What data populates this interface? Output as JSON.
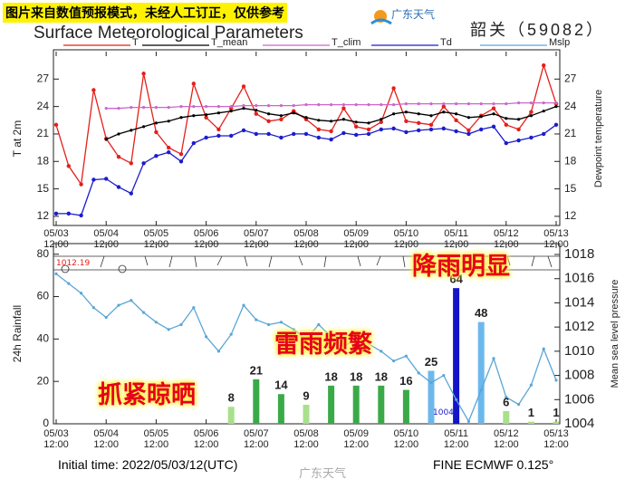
{
  "header": {
    "notice": "图片来自数值预报模式，未经人工订正，仅供参考",
    "logo": "广东天气",
    "station": "韶关（59082）"
  },
  "footer": {
    "initial_time": "Initial time: 2022/05/03/12(UTC)",
    "model": "FINE ECMWF 0.125°",
    "watermark": "广东天气"
  },
  "chart_data": [
    {
      "type": "line",
      "title": "Surface Meteorological Parameters",
      "y_label": "T at 2m",
      "y2_label": "Dewpoint temperature",
      "x": [
        "05/03 12:00",
        "05/03 18:00",
        "05/04 00:00",
        "05/04 06:00",
        "05/04 12:00",
        "05/04 18:00",
        "05/05 00:00",
        "05/05 06:00",
        "05/05 12:00",
        "05/05 18:00",
        "05/06 00:00",
        "05/06 06:00",
        "05/06 12:00",
        "05/06 18:00",
        "05/07 00:00",
        "05/07 06:00",
        "05/07 12:00",
        "05/07 18:00",
        "05/08 00:00",
        "05/08 06:00",
        "05/08 12:00",
        "05/08 18:00",
        "05/09 00:00",
        "05/09 06:00",
        "05/09 12:00",
        "05/09 18:00",
        "05/10 00:00",
        "05/10 06:00",
        "05/10 12:00",
        "05/10 18:00",
        "05/11 00:00",
        "05/11 06:00",
        "05/11 12:00",
        "05/11 18:00",
        "05/12 00:00",
        "05/12 06:00",
        "05/12 12:00",
        "05/12 18:00",
        "05/13 00:00",
        "05/13 06:00",
        "05/13 12:00"
      ],
      "series": [
        {
          "name": "T",
          "color": "#e3201b",
          "values": [
            22,
            17.5,
            15.5,
            25.8,
            20.5,
            18.5,
            17.8,
            27.6,
            21.2,
            19.5,
            18.8,
            26.5,
            22.8,
            21.5,
            23.8,
            26.2,
            23.2,
            22.4,
            22.6,
            23.5,
            22.6,
            21.5,
            21.3,
            23.8,
            21.8,
            21.5,
            22.3,
            26.0,
            22.4,
            22.2,
            22.0,
            24.0,
            22.5,
            21.4,
            23.0,
            23.8,
            22.0,
            21.5,
            23.4,
            28.5,
            24.3
          ]
        },
        {
          "name": "T_mean",
          "color": "#000000",
          "values": [
            null,
            null,
            null,
            null,
            20.4,
            21.0,
            21.4,
            21.8,
            22.2,
            22.4,
            22.8,
            23.0,
            23.1,
            23.3,
            23.5,
            23.8,
            23.6,
            23.2,
            23.0,
            23.3,
            22.8,
            22.5,
            22.4,
            22.6,
            22.3,
            22.2,
            22.6,
            23.2,
            23.4,
            23.2,
            23.0,
            23.4,
            23.2,
            22.8,
            22.9,
            23.2,
            22.7,
            22.6,
            23.0,
            23.5,
            24.0
          ]
        },
        {
          "name": "T_clim",
          "color": "#cc66cc",
          "values": [
            null,
            null,
            null,
            null,
            23.8,
            23.8,
            23.9,
            23.9,
            23.9,
            23.9,
            24.0,
            24.0,
            24.0,
            24.0,
            24.0,
            24.1,
            24.1,
            24.1,
            24.1,
            24.1,
            24.2,
            24.2,
            24.2,
            24.2,
            24.2,
            24.2,
            24.2,
            24.2,
            24.3,
            24.3,
            24.3,
            24.3,
            24.3,
            24.3,
            24.3,
            24.3,
            24.3,
            24.4,
            24.4,
            24.4,
            24.4
          ]
        },
        {
          "name": "Td",
          "color": "#1c1ccc",
          "axis": "y2",
          "values": [
            12.3,
            12.3,
            12.1,
            16.0,
            16.1,
            15.2,
            14.5,
            17.8,
            18.6,
            19.0,
            18.0,
            20.0,
            20.6,
            20.8,
            20.8,
            21.4,
            21.0,
            21.0,
            20.6,
            21.0,
            21.0,
            20.6,
            20.4,
            21.1,
            20.9,
            21.0,
            21.5,
            21.6,
            21.2,
            21.4,
            21.5,
            21.6,
            21.3,
            21.0,
            21.5,
            21.8,
            20.0,
            20.3,
            20.6,
            21.0,
            22.0
          ]
        }
      ],
      "xlim": [
        "05/03 12:00",
        "05/13 12:00"
      ],
      "xticks": [
        "05/03 12:00",
        "05/04 12:00",
        "05/05 12:00",
        "05/06 12:00",
        "05/07 12:00",
        "05/08 12:00",
        "05/09 12:00",
        "05/10 12:00",
        "05/11 12:00",
        "05/12 12:00",
        "05/13 12:00"
      ],
      "ylim": [
        11,
        30
      ],
      "yticks": [
        12,
        15,
        18,
        21,
        24,
        27
      ],
      "y2lim": [
        11,
        30
      ],
      "y2ticks": [
        12,
        15,
        18,
        21,
        24,
        27
      ]
    },
    {
      "type": "bar",
      "y_label": "24h Rainfall",
      "y2_label": "Mean sea level pressure",
      "bars": {
        "x": [
          "05/07 00:00",
          "05/07 12:00",
          "05/08 00:00",
          "05/08 12:00",
          "05/09 00:00",
          "05/09 12:00",
          "05/10 00:00",
          "05/10 12:00",
          "05/11 00:00",
          "05/11 12:00",
          "05/12 00:00",
          "05/12 12:00",
          "05/13 00:00",
          "05/13 12:00"
        ],
        "values": [
          8,
          21,
          14,
          9,
          18,
          18,
          18,
          16,
          25,
          64,
          48,
          6,
          1,
          1
        ],
        "colors": [
          "#a8e08c",
          "#3aaa48",
          "#3aaa48",
          "#a8e08c",
          "#3aaa48",
          "#3aaa48",
          "#3aaa48",
          "#3aaa48",
          "#6cb8ec",
          "#1414c8",
          "#6cb8ec",
          "#a8e08c",
          "#a8e08c",
          "#a8e08c"
        ]
      },
      "x": [
        "05/03 12:00",
        "05/03 18:00",
        "05/04 00:00",
        "05/04 06:00",
        "05/04 12:00",
        "05/04 18:00",
        "05/05 00:00",
        "05/05 06:00",
        "05/05 12:00",
        "05/05 18:00",
        "05/06 00:00",
        "05/06 06:00",
        "05/06 12:00",
        "05/06 18:00",
        "05/07 00:00",
        "05/07 06:00",
        "05/07 12:00",
        "05/07 18:00",
        "05/08 00:00",
        "05/08 06:00",
        "05/08 12:00",
        "05/08 18:00",
        "05/09 00:00",
        "05/09 06:00",
        "05/09 12:00",
        "05/09 18:00",
        "05/10 00:00",
        "05/10 06:00",
        "05/10 12:00",
        "05/10 18:00",
        "05/11 00:00",
        "05/11 06:00",
        "05/11 12:00",
        "05/11 18:00",
        "05/12 00:00",
        "05/12 06:00",
        "05/12 12:00",
        "05/12 18:00",
        "05/13 00:00",
        "05/13 06:00",
        "05/13 12:00"
      ],
      "series": [
        {
          "name": "Mslp",
          "color": "#5aa6d6",
          "axis": "y2",
          "values": [
            1016.4,
            1015.6,
            1014.8,
            1013.6,
            1012.8,
            1013.8,
            1014.2,
            1013.2,
            1012.4,
            1011.8,
            1012.2,
            1013.6,
            1011.2,
            1010.0,
            1011.4,
            1013.8,
            1012.6,
            1012.2,
            1012.4,
            1011.8,
            1011.0,
            1012.2,
            1011.2,
            1010.4,
            1011.0,
            1010.6,
            1010.0,
            1009.2,
            1009.6,
            1008.2,
            1007.4,
            1008.0,
            1006.0,
            1004.2,
            1006.8,
            1009.4,
            1006.2,
            1005.6,
            1007.2,
            1010.2,
            1007.6
          ]
        }
      ],
      "xlim": [
        "05/03 12:00",
        "05/13 12:00"
      ],
      "xticks": [
        "05/03 12:00",
        "05/04 12:00",
        "05/05 12:00",
        "05/06 12:00",
        "05/07 12:00",
        "05/08 12:00",
        "05/09 12:00",
        "05/10 12:00",
        "05/11 12:00",
        "05/12 12:00",
        "05/13 12:00"
      ],
      "ylim": [
        0,
        85
      ],
      "yticks": [
        0,
        20,
        40,
        60,
        80
      ],
      "y2lim": [
        1004,
        1018.9
      ],
      "y2ticks": [
        1004,
        1006,
        1008,
        1010,
        1012,
        1014,
        1016,
        1018
      ],
      "annotations": [
        "降雨明显",
        "雷雨频繁",
        "抓紧晾晒",
        "1004",
        "1012.19"
      ]
    }
  ]
}
